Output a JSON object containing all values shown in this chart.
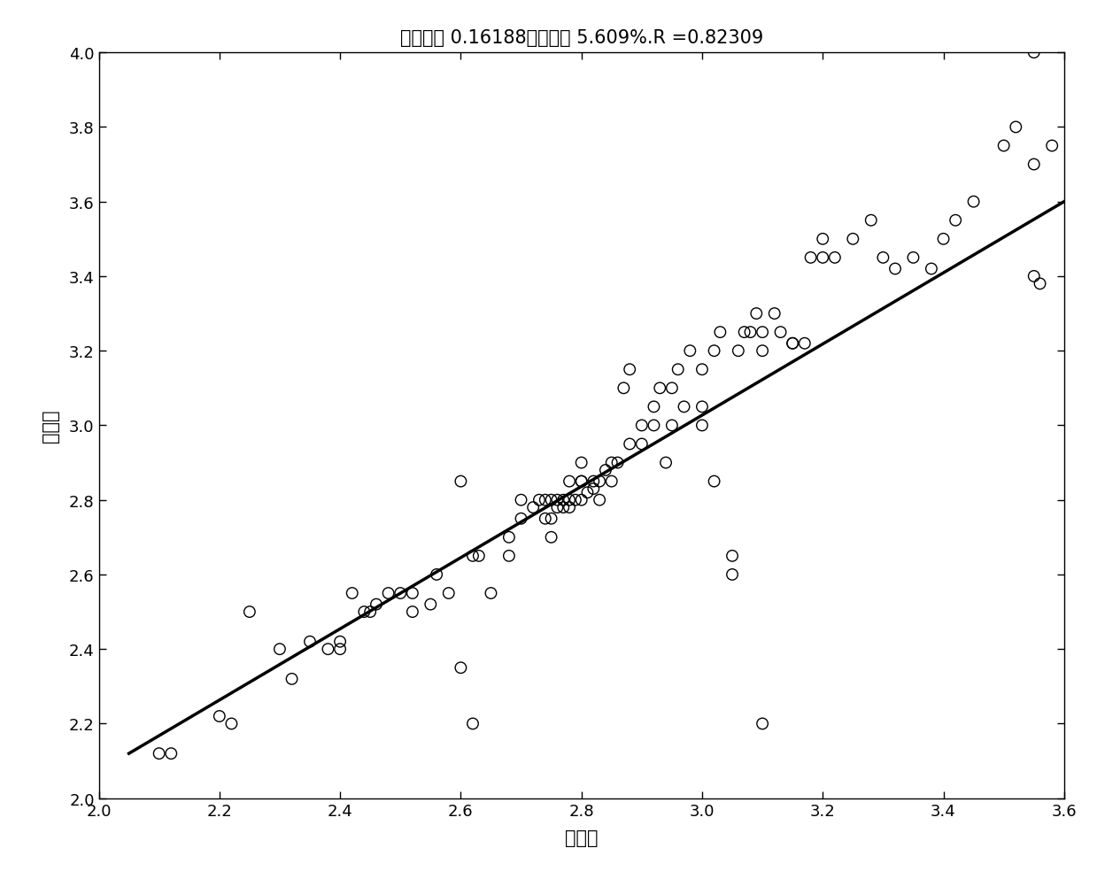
{
  "title": "绝对误差 0.16188相对误差 5.609%.R =0.82309",
  "xlabel": "预测値",
  "ylabel": "实际値",
  "xlim": [
    2.0,
    3.6
  ],
  "ylim": [
    2.0,
    4.0
  ],
  "xticks": [
    2.0,
    2.2,
    2.4,
    2.6,
    2.8,
    3.0,
    3.2,
    3.4,
    3.6
  ],
  "yticks": [
    2.0,
    2.2,
    2.4,
    2.6,
    2.8,
    3.0,
    3.2,
    3.4,
    3.6,
    3.8,
    4.0
  ],
  "scatter_x": [
    2.1,
    2.12,
    2.2,
    2.22,
    2.25,
    2.3,
    2.32,
    2.35,
    2.38,
    2.4,
    2.4,
    2.42,
    2.44,
    2.45,
    2.46,
    2.48,
    2.5,
    2.52,
    2.52,
    2.55,
    2.56,
    2.58,
    2.6,
    2.62,
    2.63,
    2.65,
    2.68,
    2.68,
    2.7,
    2.7,
    2.72,
    2.73,
    2.74,
    2.74,
    2.75,
    2.75,
    2.75,
    2.76,
    2.76,
    2.77,
    2.77,
    2.78,
    2.78,
    2.78,
    2.79,
    2.8,
    2.8,
    2.8,
    2.8,
    2.81,
    2.82,
    2.82,
    2.83,
    2.83,
    2.84,
    2.85,
    2.85,
    2.86,
    2.87,
    2.88,
    2.88,
    2.9,
    2.9,
    2.92,
    2.92,
    2.93,
    2.94,
    2.95,
    2.95,
    2.96,
    2.97,
    2.98,
    3.0,
    3.0,
    3.0,
    3.02,
    3.02,
    3.03,
    3.05,
    3.05,
    3.06,
    3.07,
    3.08,
    3.09,
    3.1,
    3.1,
    3.12,
    3.13,
    3.15,
    3.15,
    3.17,
    3.18,
    3.2,
    3.2,
    3.22,
    3.25,
    3.28,
    3.3,
    3.32,
    3.35,
    3.38,
    3.4,
    3.42,
    3.45,
    3.5,
    3.52,
    3.55,
    3.58,
    2.6,
    2.62,
    3.55,
    3.56,
    3.1,
    3.55
  ],
  "scatter_y": [
    2.12,
    2.12,
    2.22,
    2.2,
    2.5,
    2.4,
    2.32,
    2.42,
    2.4,
    2.4,
    2.42,
    2.55,
    2.5,
    2.5,
    2.52,
    2.55,
    2.55,
    2.55,
    2.5,
    2.52,
    2.6,
    2.55,
    2.85,
    2.65,
    2.65,
    2.55,
    2.7,
    2.65,
    2.75,
    2.8,
    2.78,
    2.8,
    2.75,
    2.8,
    2.7,
    2.8,
    2.75,
    2.8,
    2.78,
    2.8,
    2.78,
    2.8,
    2.85,
    2.78,
    2.8,
    2.8,
    2.85,
    2.9,
    2.85,
    2.82,
    2.83,
    2.85,
    2.8,
    2.85,
    2.88,
    2.85,
    2.9,
    2.9,
    3.1,
    3.15,
    2.95,
    2.95,
    3.0,
    3.0,
    3.05,
    3.1,
    2.9,
    3.0,
    3.1,
    3.15,
    3.05,
    3.2,
    3.0,
    3.05,
    3.15,
    2.85,
    3.2,
    3.25,
    2.6,
    2.65,
    3.2,
    3.25,
    3.25,
    3.3,
    3.2,
    3.25,
    3.3,
    3.25,
    3.22,
    3.22,
    3.22,
    3.45,
    3.45,
    3.5,
    3.45,
    3.5,
    3.55,
    3.45,
    3.42,
    3.45,
    3.42,
    3.5,
    3.55,
    3.6,
    3.75,
    3.8,
    3.7,
    3.75,
    2.35,
    2.2,
    3.4,
    3.38,
    2.2,
    4.0
  ],
  "line_x": [
    2.05,
    3.6
  ],
  "line_y": [
    2.12,
    3.6
  ],
  "line_color": "#000000",
  "line_width": 2.5,
  "marker_color": "none",
  "marker_edge_color": "#000000",
  "marker_size": 9,
  "marker_linewidth": 1.0,
  "title_fontsize": 15,
  "label_fontsize": 15,
  "tick_fontsize": 13,
  "background_color": "#ffffff"
}
